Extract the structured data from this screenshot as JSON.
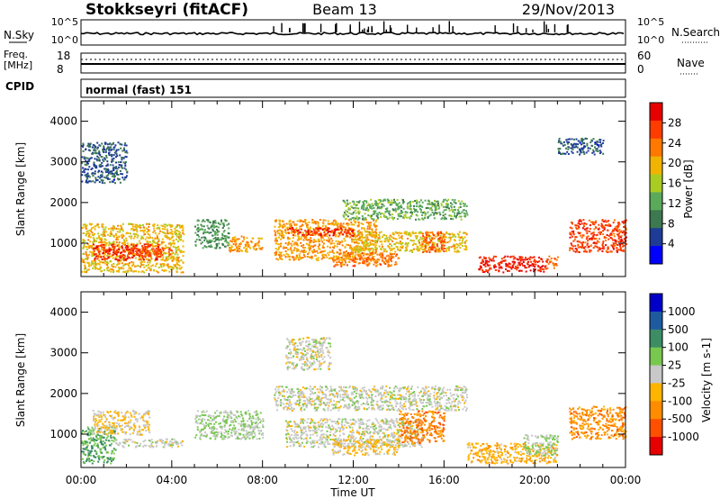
{
  "header": {
    "station": "Stokkseyri (fitACF)",
    "beam": "Beam 13",
    "date": "29/Nov/2013"
  },
  "noise_panel": {
    "left_label": "N.Sky",
    "left_ticks": [
      "10^5",
      "10^0"
    ],
    "right_ticks": [
      "10^5",
      "10^0"
    ],
    "right_label": "N.Search"
  },
  "freq_panel": {
    "left_label_1": "Freq.",
    "left_label_2": "[MHz]",
    "left_ticks": [
      "18",
      "8"
    ],
    "right_ticks": [
      "60",
      "0"
    ],
    "right_label": "Nave"
  },
  "cpid": {
    "label": "CPID",
    "text": "normal (fast) 151"
  },
  "x_axis": {
    "label": "Time UT",
    "ticks": [
      "00:00",
      "04:00",
      "08:00",
      "12:00",
      "16:00",
      "20:00",
      "00:00"
    ]
  },
  "colors": {
    "power_scale": [
      "#0000ff",
      "#1e3c96",
      "#3c7850",
      "#5aaa5a",
      "#aacc22",
      "#f0b400",
      "#ff7800",
      "#ff3c00",
      "#e60000"
    ],
    "velocity_scale": [
      "#0000c8",
      "#1e5aa0",
      "#3c8c64",
      "#78c850",
      "#c8c8c8",
      "#ffb400",
      "#ff8c00",
      "#ff5000",
      "#e60000"
    ],
    "ground_scatter": "#c8c8c8"
  },
  "chart_data": [
    {
      "type": "heatmap",
      "name": "power",
      "title": "",
      "xlabel": "",
      "ylabel": "Slant Range [km]",
      "xlim": [
        0,
        24
      ],
      "ylim": [
        180,
        4500
      ],
      "yticks": [
        "4000",
        "3000",
        "2000",
        "1000"
      ],
      "colorbar": {
        "label": "Power [dB]",
        "ticks": [
          "28",
          "24",
          "20",
          "16",
          "12",
          "8",
          "4"
        ],
        "range": [
          0,
          30
        ]
      },
      "regions": [
        {
          "t": [
            0,
            4.5
          ],
          "r": [
            300,
            1500
          ],
          "value": 18
        },
        {
          "t": [
            0.5,
            3.5
          ],
          "r": [
            600,
            1000
          ],
          "value": 26
        },
        {
          "t": [
            2.2,
            4
          ],
          "r": [
            700,
            900
          ],
          "value": 24
        },
        {
          "t": [
            5,
            6.5
          ],
          "r": [
            900,
            1600
          ],
          "value": 10
        },
        {
          "t": [
            6.5,
            8
          ],
          "r": [
            800,
            1200
          ],
          "value": 20
        },
        {
          "t": [
            8.5,
            13
          ],
          "r": [
            600,
            1600
          ],
          "value": 20
        },
        {
          "t": [
            9,
            12
          ],
          "r": [
            1200,
            1400
          ],
          "value": 26
        },
        {
          "t": [
            11,
            14
          ],
          "r": [
            450,
            800
          ],
          "value": 22
        },
        {
          "t": [
            12,
            17
          ],
          "r": [
            800,
            1300
          ],
          "value": 18
        },
        {
          "t": [
            11.5,
            17
          ],
          "r": [
            1600,
            2100
          ],
          "value": 12
        },
        {
          "t": [
            15,
            16
          ],
          "r": [
            800,
            1300
          ],
          "value": 24
        },
        {
          "t": [
            17.5,
            20.5
          ],
          "r": [
            300,
            700
          ],
          "value": 27
        },
        {
          "t": [
            20.5,
            21
          ],
          "r": [
            400,
            700
          ],
          "value": 22
        },
        {
          "t": [
            21.5,
            24
          ],
          "r": [
            800,
            1600
          ],
          "value": 25
        },
        {
          "t": [
            0,
            2
          ],
          "r": [
            2500,
            3500
          ],
          "value": 6
        },
        {
          "t": [
            21,
            23
          ],
          "r": [
            3200,
            3600
          ],
          "value": 6
        }
      ]
    },
    {
      "type": "heatmap",
      "name": "velocity",
      "title": "",
      "xlabel": "Time UT",
      "ylabel": "Slant Range [km]",
      "xlim": [
        0,
        24
      ],
      "ylim": [
        180,
        4500
      ],
      "yticks": [
        "4000",
        "3000",
        "2000",
        "1000"
      ],
      "colorbar": {
        "label": "Velocity [m s-1]",
        "ticks": [
          "1000",
          "500",
          "100",
          "25",
          "-25",
          "-100",
          "-500",
          "-1000"
        ],
        "range": [
          -1200,
          1200
        ]
      },
      "regions": [
        {
          "t": [
            0,
            1.5
          ],
          "r": [
            300,
            1200
          ],
          "value": 400
        },
        {
          "t": [
            1.5,
            4.5
          ],
          "r": [
            700,
            900
          ],
          "value": 0
        },
        {
          "t": [
            0.5,
            3
          ],
          "r": [
            1000,
            1600
          ],
          "value": -150
        },
        {
          "t": [
            5,
            8
          ],
          "r": [
            900,
            1600
          ],
          "value": 150
        },
        {
          "t": [
            8.5,
            17
          ],
          "r": [
            1600,
            2200
          ],
          "value": 0
        },
        {
          "t": [
            9,
            15
          ],
          "r": [
            700,
            1400
          ],
          "value": 0
        },
        {
          "t": [
            11,
            14
          ],
          "r": [
            500,
            900
          ],
          "value": -200
        },
        {
          "t": [
            14,
            16
          ],
          "r": [
            800,
            1600
          ],
          "value": -600
        },
        {
          "t": [
            17,
            21
          ],
          "r": [
            300,
            800
          ],
          "value": -300
        },
        {
          "t": [
            19.5,
            21
          ],
          "r": [
            500,
            1000
          ],
          "value": 120
        },
        {
          "t": [
            21.5,
            24
          ],
          "r": [
            900,
            1700
          ],
          "value": -500
        },
        {
          "t": [
            9,
            11
          ],
          "r": [
            2600,
            3400
          ],
          "value": 0
        }
      ]
    }
  ]
}
